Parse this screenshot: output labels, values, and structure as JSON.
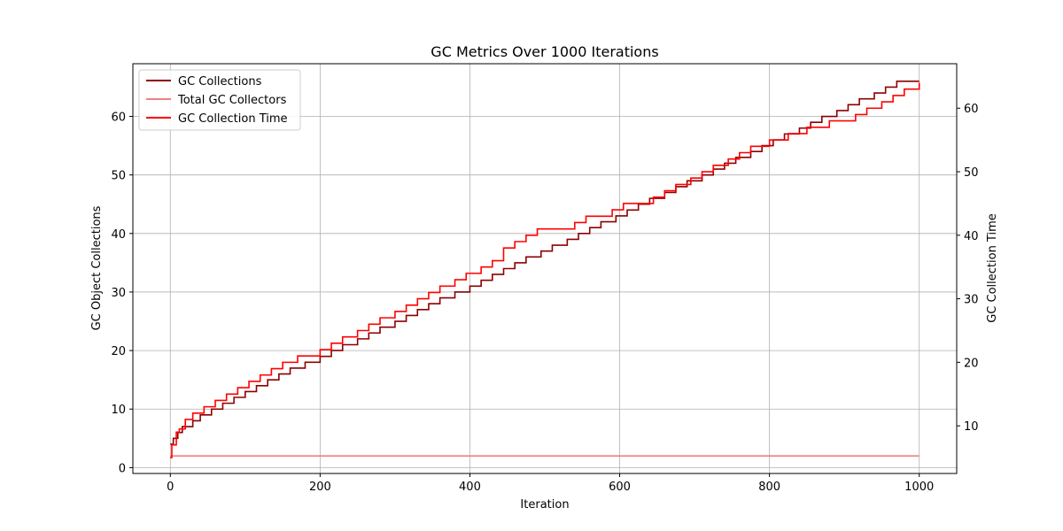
{
  "chart_data": {
    "type": "line",
    "title": "GC Metrics Over 1000 Iterations",
    "xlabel": "Iteration",
    "ylabel_left": "GC Object Collections",
    "ylabel_right": "GC Collection Time",
    "xlim": [
      -50,
      1050
    ],
    "ylim_left": [
      -1,
      69
    ],
    "ylim_right": [
      2.5,
      67
    ],
    "xticks": [
      0,
      200,
      400,
      600,
      800,
      1000
    ],
    "yticks_left": [
      0,
      10,
      20,
      30,
      40,
      50,
      60
    ],
    "yticks_right": [
      10,
      20,
      30,
      40,
      50,
      60
    ],
    "grid": true,
    "legend_position": "top-left",
    "series": [
      {
        "name": "GC Collections",
        "axis": "left",
        "color": "#8b0000",
        "step": "post",
        "points": [
          [
            0,
            4
          ],
          [
            4,
            5
          ],
          [
            10,
            6
          ],
          [
            16,
            7
          ],
          [
            30,
            8
          ],
          [
            40,
            9
          ],
          [
            55,
            10
          ],
          [
            70,
            11
          ],
          [
            85,
            12
          ],
          [
            100,
            13
          ],
          [
            115,
            14
          ],
          [
            130,
            15
          ],
          [
            145,
            16
          ],
          [
            160,
            17
          ],
          [
            180,
            18
          ],
          [
            200,
            19
          ],
          [
            215,
            20
          ],
          [
            230,
            21
          ],
          [
            250,
            22
          ],
          [
            265,
            23
          ],
          [
            280,
            24
          ],
          [
            300,
            25
          ],
          [
            315,
            26
          ],
          [
            330,
            27
          ],
          [
            345,
            28
          ],
          [
            360,
            29
          ],
          [
            380,
            30
          ],
          [
            400,
            31
          ],
          [
            415,
            32
          ],
          [
            430,
            33
          ],
          [
            445,
            34
          ],
          [
            460,
            35
          ],
          [
            475,
            36
          ],
          [
            495,
            37
          ],
          [
            510,
            38
          ],
          [
            530,
            39
          ],
          [
            545,
            40
          ],
          [
            560,
            41
          ],
          [
            575,
            42
          ],
          [
            595,
            43
          ],
          [
            610,
            44
          ],
          [
            625,
            45
          ],
          [
            640,
            46
          ],
          [
            660,
            47
          ],
          [
            675,
            48
          ],
          [
            690,
            49
          ],
          [
            710,
            50
          ],
          [
            725,
            51
          ],
          [
            740,
            52
          ],
          [
            755,
            53
          ],
          [
            775,
            54
          ],
          [
            790,
            55
          ],
          [
            805,
            56
          ],
          [
            820,
            57
          ],
          [
            840,
            58
          ],
          [
            855,
            59
          ],
          [
            870,
            60
          ],
          [
            890,
            61
          ],
          [
            905,
            62
          ],
          [
            920,
            63
          ],
          [
            940,
            64
          ],
          [
            955,
            65
          ],
          [
            970,
            66
          ],
          [
            985,
            66
          ],
          [
            1000,
            66
          ]
        ]
      },
      {
        "name": "Total GC Collectors",
        "axis": "left",
        "color": "#f08080",
        "step": "post",
        "points": [
          [
            0,
            2
          ],
          [
            1000,
            2
          ]
        ]
      },
      {
        "name": "GC Collection Time",
        "axis": "right",
        "color": "#ff0000",
        "step": "post",
        "points": [
          [
            0,
            5
          ],
          [
            2,
            7
          ],
          [
            8,
            9
          ],
          [
            12,
            9.5
          ],
          [
            20,
            11
          ],
          [
            30,
            12
          ],
          [
            45,
            13
          ],
          [
            60,
            14
          ],
          [
            75,
            15
          ],
          [
            90,
            16
          ],
          [
            105,
            17
          ],
          [
            120,
            18
          ],
          [
            135,
            19
          ],
          [
            150,
            20
          ],
          [
            170,
            21
          ],
          [
            200,
            22
          ],
          [
            215,
            23
          ],
          [
            230,
            24
          ],
          [
            250,
            25
          ],
          [
            265,
            26
          ],
          [
            280,
            27
          ],
          [
            300,
            28
          ],
          [
            315,
            29
          ],
          [
            330,
            30
          ],
          [
            345,
            31
          ],
          [
            360,
            32
          ],
          [
            380,
            33
          ],
          [
            395,
            34
          ],
          [
            415,
            35
          ],
          [
            430,
            36
          ],
          [
            445,
            38
          ],
          [
            460,
            39
          ],
          [
            475,
            40
          ],
          [
            490,
            41
          ],
          [
            540,
            42
          ],
          [
            555,
            43
          ],
          [
            590,
            44
          ],
          [
            605,
            45
          ],
          [
            645,
            46
          ],
          [
            660,
            47
          ],
          [
            675,
            48
          ],
          [
            695,
            49
          ],
          [
            710,
            50
          ],
          [
            725,
            51
          ],
          [
            745,
            52
          ],
          [
            760,
            53
          ],
          [
            775,
            54
          ],
          [
            800,
            55
          ],
          [
            825,
            56
          ],
          [
            850,
            57
          ],
          [
            880,
            58
          ],
          [
            915,
            59
          ],
          [
            930,
            60
          ],
          [
            950,
            61
          ],
          [
            965,
            62
          ],
          [
            980,
            63
          ],
          [
            1000,
            64
          ]
        ]
      }
    ]
  }
}
